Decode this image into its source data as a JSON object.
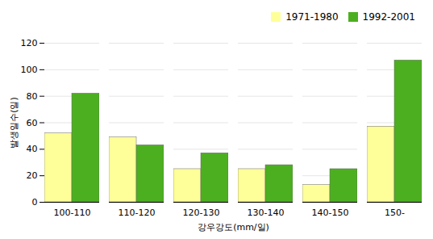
{
  "chart_data": {
    "type": "bar",
    "categories": [
      "100-110",
      "110-120",
      "120-130",
      "130-140",
      "140-150",
      "150-"
    ],
    "series": [
      {
        "name": "1971-1980",
        "color": "#FFFF99",
        "values": [
          52,
          49,
          25,
          25,
          13,
          57
        ]
      },
      {
        "name": "1992-2001",
        "color": "#4CAF20",
        "values": [
          82,
          43,
          37,
          28,
          25,
          107
        ]
      }
    ],
    "xlabel": "강우강도(mm/일)",
    "ylabel": "발생일수(일)",
    "ylim": [
      0,
      120
    ],
    "yticks": [
      0,
      20,
      40,
      60,
      80,
      100,
      120
    ],
    "grid": true,
    "legend": "upper right"
  }
}
